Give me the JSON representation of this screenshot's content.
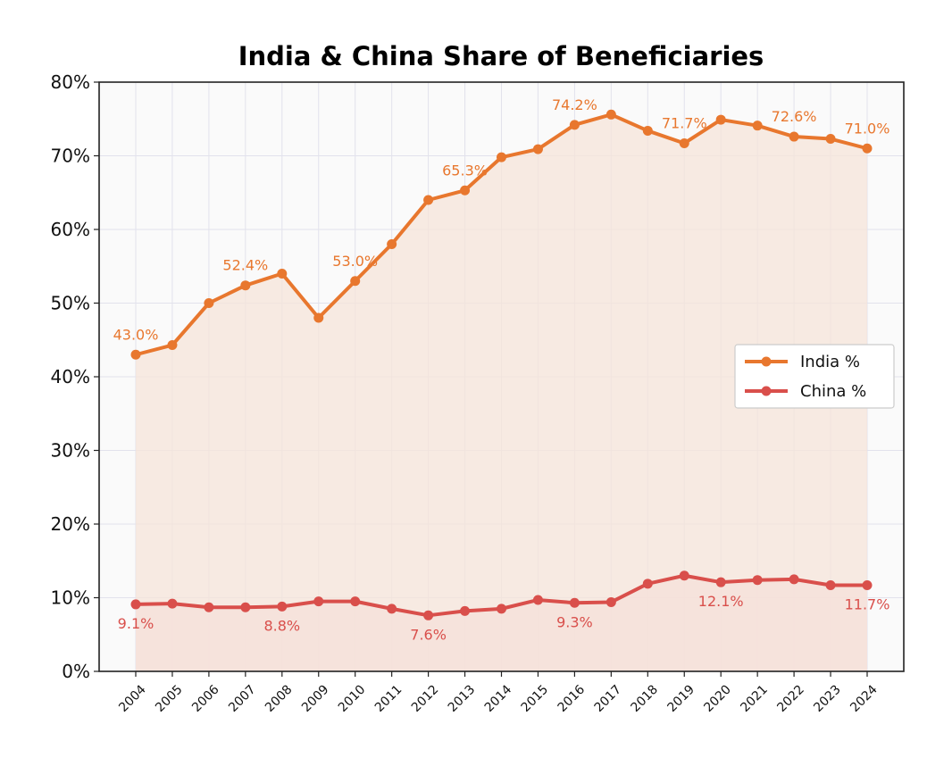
{
  "chart_data": {
    "type": "line",
    "title": "India & China Share of Beneficiaries",
    "xlabel": "",
    "ylabel": "",
    "ylim": [
      0,
      80
    ],
    "yticks": [
      0,
      10,
      20,
      30,
      40,
      50,
      60,
      70,
      80
    ],
    "ytick_suffix": "%",
    "grid": true,
    "legend_position": "center-right",
    "categories": [
      "2004",
      "2005",
      "2006",
      "2007",
      "2008",
      "2009",
      "2010",
      "2011",
      "2012",
      "2013",
      "2014",
      "2015",
      "2016",
      "2017",
      "2018",
      "2019",
      "2020",
      "2021",
      "2022",
      "2023",
      "2024"
    ],
    "series": [
      {
        "name": "India %",
        "color": "#e8772e",
        "fill": "#f6e4d9",
        "values": [
          43.0,
          44.3,
          50.0,
          52.4,
          54.0,
          48.0,
          53.0,
          58.0,
          64.0,
          65.3,
          69.8,
          70.9,
          74.2,
          75.6,
          73.4,
          71.7,
          74.9,
          74.1,
          72.6,
          72.3,
          71.0
        ],
        "labels": [
          {
            "index": 0,
            "text": "43.0%",
            "pos": "above"
          },
          {
            "index": 3,
            "text": "52.4%",
            "pos": "above"
          },
          {
            "index": 6,
            "text": "53.0%",
            "pos": "above"
          },
          {
            "index": 9,
            "text": "65.3%",
            "pos": "above"
          },
          {
            "index": 12,
            "text": "74.2%",
            "pos": "above"
          },
          {
            "index": 15,
            "text": "71.7%",
            "pos": "above"
          },
          {
            "index": 18,
            "text": "72.6%",
            "pos": "above"
          },
          {
            "index": 20,
            "text": "71.0%",
            "pos": "above"
          }
        ]
      },
      {
        "name": "China %",
        "color": "#d94f4b",
        "fill": "#f5e0da",
        "values": [
          9.1,
          9.2,
          8.7,
          8.7,
          8.8,
          9.5,
          9.5,
          8.5,
          7.6,
          8.2,
          8.5,
          9.7,
          9.3,
          9.4,
          11.9,
          13.0,
          12.1,
          12.4,
          12.5,
          11.7,
          11.7
        ],
        "labels": [
          {
            "index": 0,
            "text": "9.1%",
            "pos": "below"
          },
          {
            "index": 4,
            "text": "8.8%",
            "pos": "below"
          },
          {
            "index": 8,
            "text": "7.6%",
            "pos": "below"
          },
          {
            "index": 12,
            "text": "9.3%",
            "pos": "below"
          },
          {
            "index": 16,
            "text": "12.1%",
            "pos": "below"
          },
          {
            "index": 20,
            "text": "11.7%",
            "pos": "below"
          }
        ]
      }
    ]
  }
}
